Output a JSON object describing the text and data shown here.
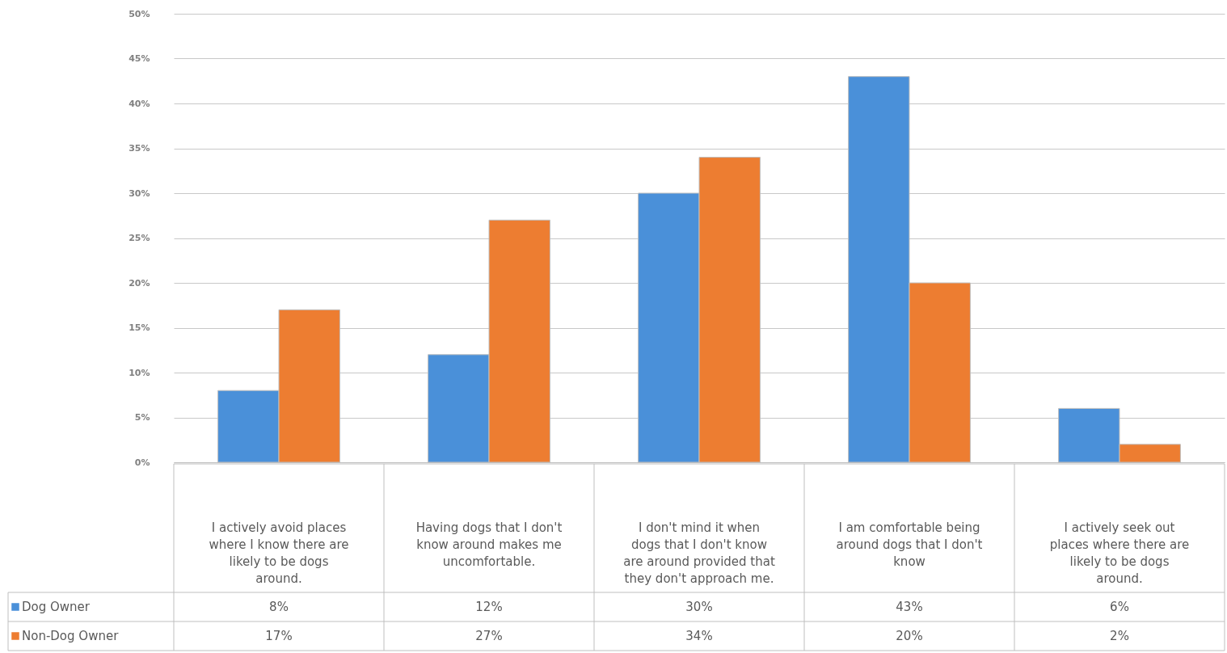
{
  "chart_data": {
    "type": "bar",
    "categories": [
      "I actively avoid places where I know there are likely to be dogs around.",
      "Having dogs that I don't know around makes me uncomfortable.",
      "I don't mind it when dogs that I don't know are around provided that they don't approach me.",
      "I am comfortable being around dogs that I don't know",
      "I actively seek out places where there are likely to be dogs around."
    ],
    "series": [
      {
        "name": "Dog Owner",
        "color": "#4a90d9",
        "values": [
          8,
          12,
          30,
          43,
          6
        ],
        "value_labels": [
          "8%",
          "12%",
          "30%",
          "43%",
          "6%"
        ]
      },
      {
        "name": "Non-Dog Owner",
        "color": "#ed7d31",
        "values": [
          17,
          27,
          34,
          20,
          2
        ],
        "value_labels": [
          "17%",
          "27%",
          "34%",
          "20%",
          "2%"
        ]
      }
    ],
    "ylim": [
      0,
      50
    ],
    "yticks": [
      {
        "value": 0,
        "label": "0%"
      },
      {
        "value": 5,
        "label": "5%"
      },
      {
        "value": 10,
        "label": "10%"
      },
      {
        "value": 15,
        "label": "15%"
      },
      {
        "value": 20,
        "label": "20%"
      },
      {
        "value": 25,
        "label": "25%"
      },
      {
        "value": 30,
        "label": "30%"
      },
      {
        "value": 35,
        "label": "35%"
      },
      {
        "value": 40,
        "label": "40%"
      },
      {
        "value": 45,
        "label": "45%"
      },
      {
        "value": 50,
        "label": "50%"
      }
    ],
    "grid": "y",
    "legend": "bottom"
  }
}
